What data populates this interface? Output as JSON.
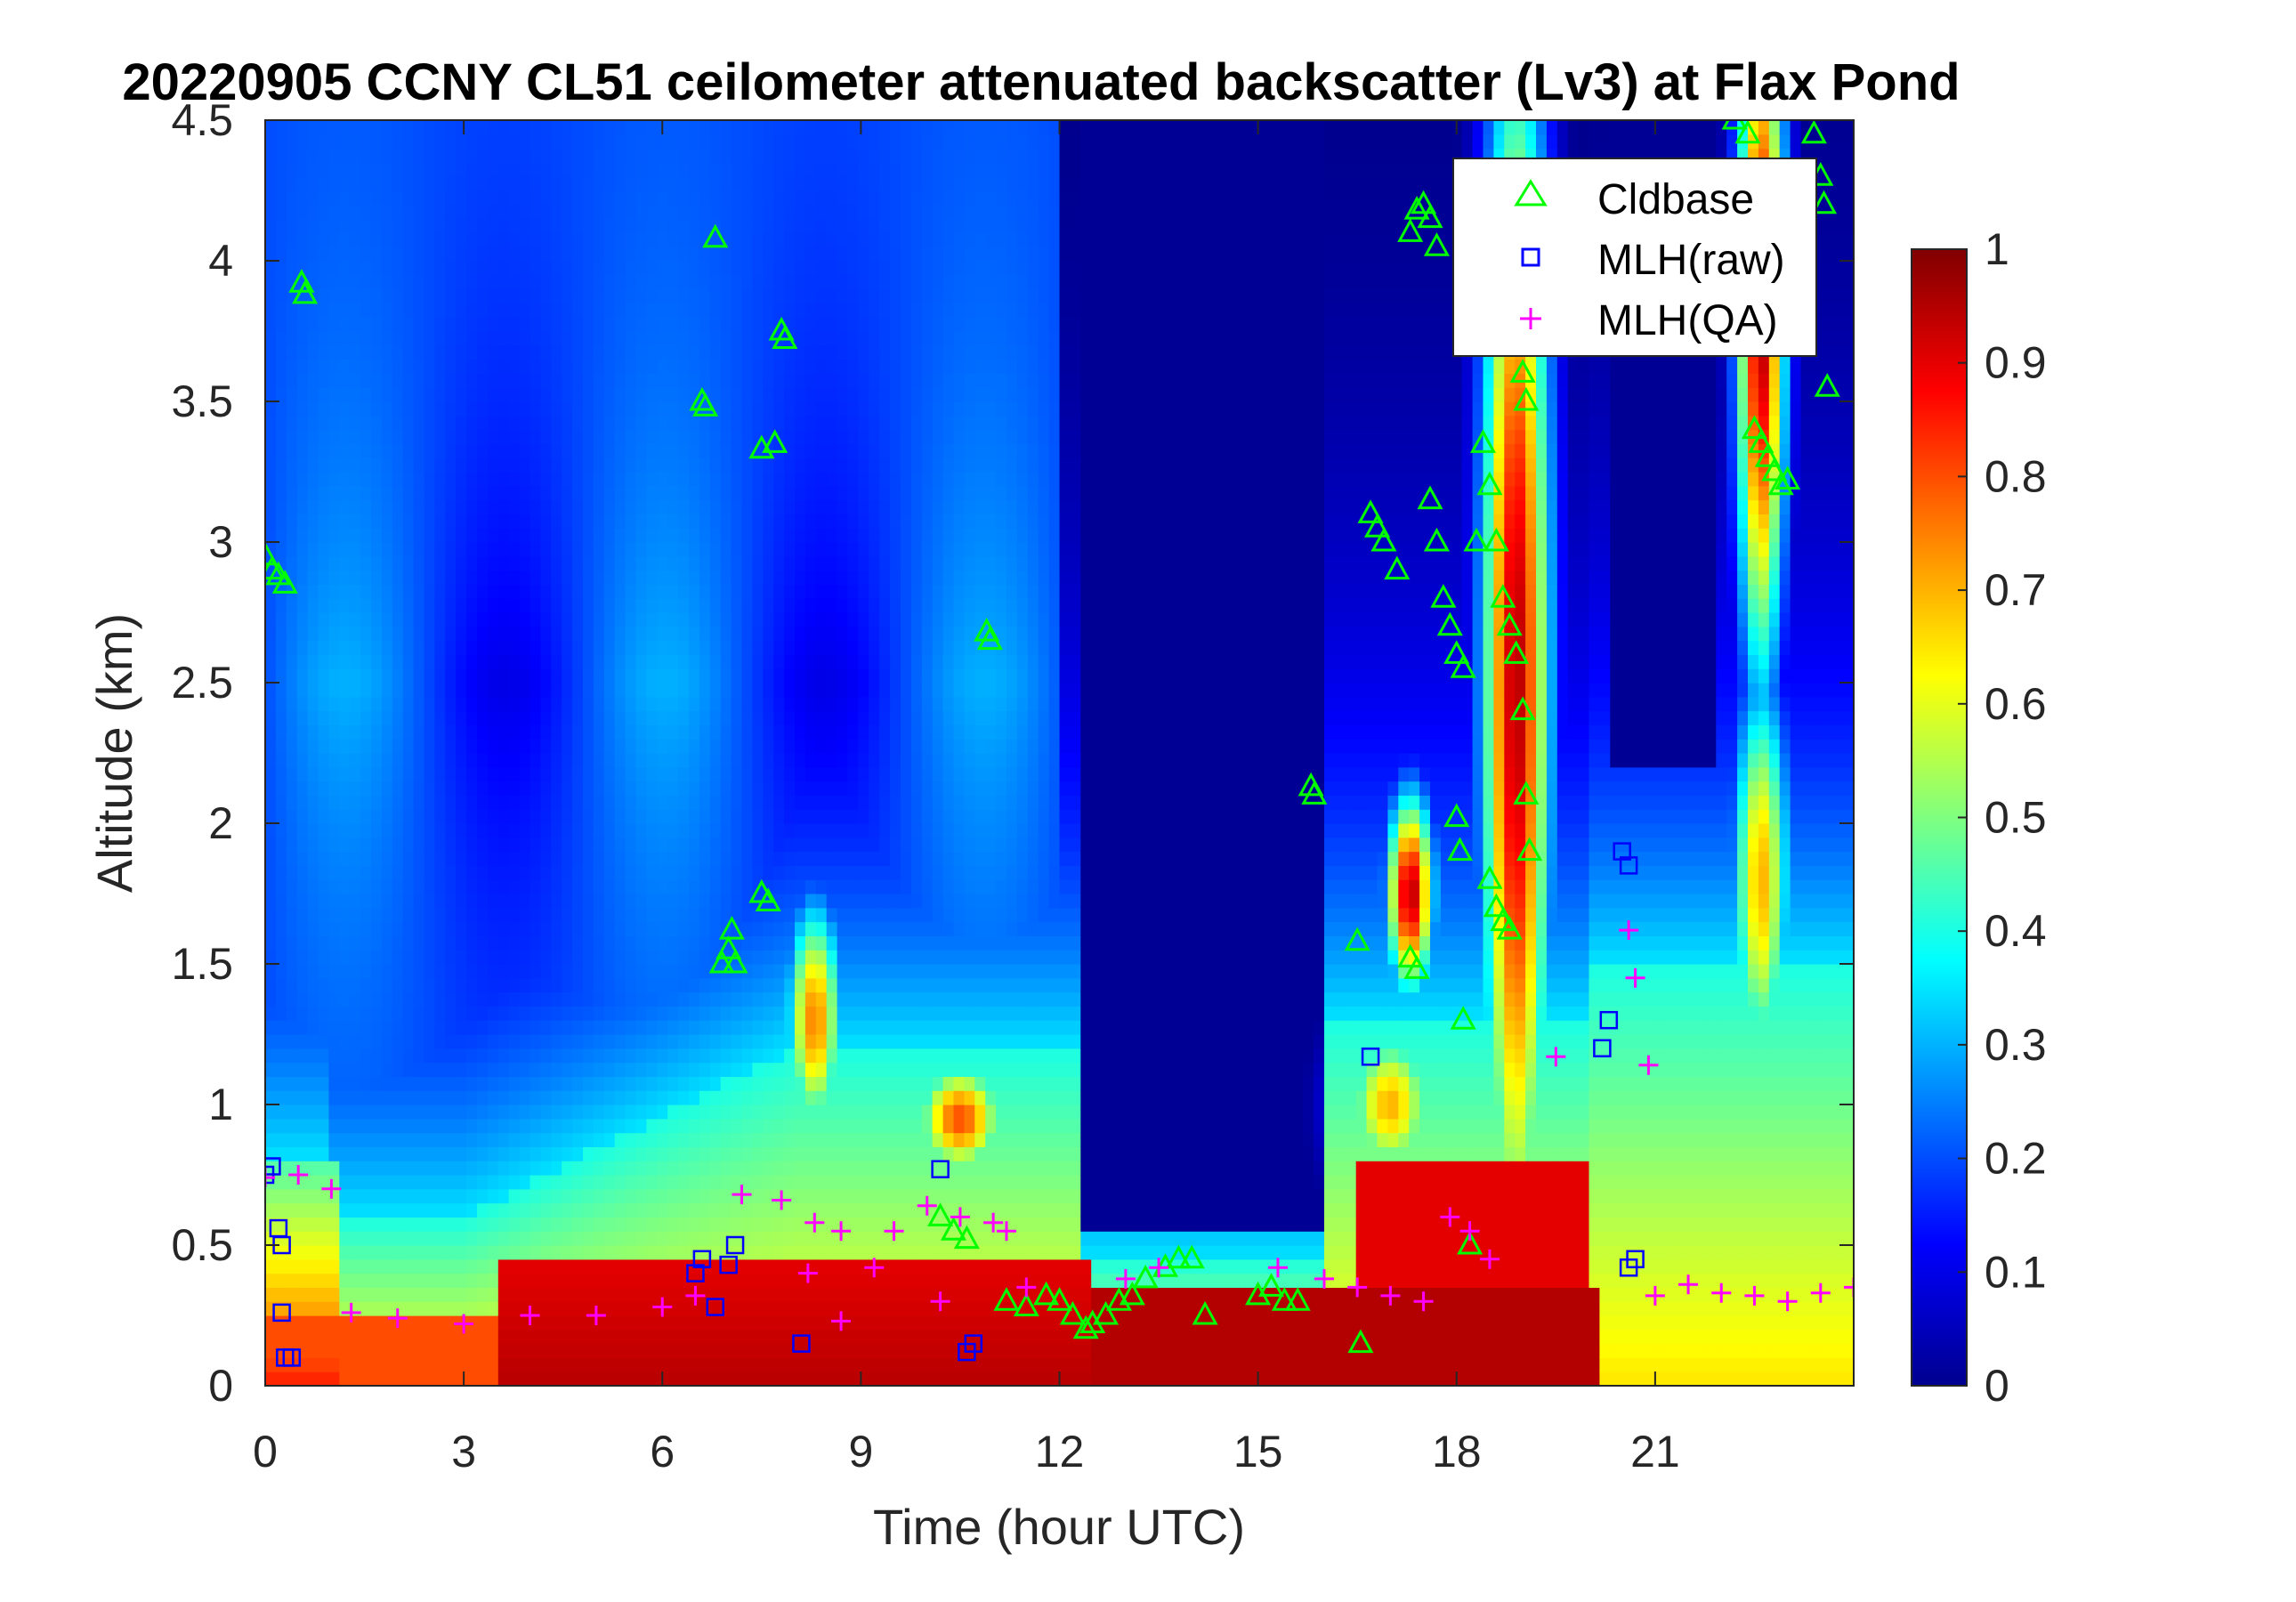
{
  "chart_data": {
    "type": "heatmap",
    "title": "20220905 CCNY CL51 ceilometer attenuated backscatter (Lv3) at Flax Pond",
    "xlabel": "Time (hour UTC)",
    "ylabel": "Altitude (km)",
    "xlim": [
      0,
      24
    ],
    "ylim": [
      0,
      4.5
    ],
    "xticks": [
      0,
      3,
      6,
      9,
      12,
      15,
      18,
      21
    ],
    "xtick_labels": [
      "0",
      "3",
      "6",
      "9",
      "12",
      "15",
      "18",
      "21"
    ],
    "yticks": [
      0,
      0.5,
      1,
      1.5,
      2,
      2.5,
      3,
      3.5,
      4,
      4.5
    ],
    "ytick_labels": [
      "0",
      "0.5",
      "1",
      "1.5",
      "2",
      "2.5",
      "3",
      "3.5",
      "4",
      "4.5"
    ],
    "colorbar": {
      "colormap": "jet",
      "clim": [
        0,
        1
      ],
      "ticks": [
        0,
        0.1,
        0.2,
        0.3,
        0.4,
        0.5,
        0.6,
        0.7,
        0.8,
        0.9,
        1
      ],
      "tick_labels": [
        "0",
        "0.1",
        "0.2",
        "0.3",
        "0.4",
        "0.5",
        "0.6",
        "0.7",
        "0.8",
        "0.9",
        "1"
      ]
    },
    "legend": {
      "position": "top-right",
      "entries": [
        {
          "label": "Cldbase",
          "marker": "triangle",
          "color": "#00ff00"
        },
        {
          "label": "MLH(raw)",
          "marker": "square",
          "color": "#0000ff"
        },
        {
          "label": "MLH(QA)",
          "marker": "plus",
          "color": "#ff00ff"
        }
      ]
    },
    "series": [
      {
        "name": "Cldbase",
        "marker": "triangle",
        "color": "#00ff00",
        "points": [
          [
            0.0,
            2.95
          ],
          [
            0.1,
            2.9
          ],
          [
            0.2,
            2.88
          ],
          [
            0.3,
            2.85
          ],
          [
            0.55,
            3.92
          ],
          [
            0.6,
            3.88
          ],
          [
            6.6,
            3.5
          ],
          [
            6.65,
            3.48
          ],
          [
            6.8,
            4.08
          ],
          [
            7.5,
            3.33
          ],
          [
            7.7,
            3.35
          ],
          [
            7.8,
            3.75
          ],
          [
            7.85,
            3.72
          ],
          [
            10.9,
            2.68
          ],
          [
            10.95,
            2.65
          ],
          [
            6.9,
            1.5
          ],
          [
            7.0,
            1.55
          ],
          [
            7.05,
            1.62
          ],
          [
            7.1,
            1.5
          ],
          [
            7.5,
            1.75
          ],
          [
            7.6,
            1.72
          ],
          [
            10.2,
            0.6
          ],
          [
            10.4,
            0.55
          ],
          [
            10.6,
            0.52
          ],
          [
            11.2,
            0.3
          ],
          [
            11.5,
            0.28
          ],
          [
            11.8,
            0.32
          ],
          [
            12.0,
            0.3
          ],
          [
            12.2,
            0.25
          ],
          [
            12.4,
            0.2
          ],
          [
            12.5,
            0.22
          ],
          [
            12.7,
            0.25
          ],
          [
            12.9,
            0.3
          ],
          [
            13.1,
            0.32
          ],
          [
            13.3,
            0.38
          ],
          [
            13.6,
            0.42
          ],
          [
            13.8,
            0.45
          ],
          [
            14.0,
            0.45
          ],
          [
            14.2,
            0.25
          ],
          [
            15.0,
            0.32
          ],
          [
            15.2,
            0.35
          ],
          [
            15.4,
            0.3
          ],
          [
            15.6,
            0.3
          ],
          [
            15.8,
            2.13
          ],
          [
            15.85,
            2.1
          ],
          [
            16.5,
            1.58
          ],
          [
            16.55,
            0.15
          ],
          [
            16.7,
            3.1
          ],
          [
            16.8,
            3.05
          ],
          [
            16.9,
            3.0
          ],
          [
            17.1,
            2.9
          ],
          [
            17.3,
            1.52
          ],
          [
            17.4,
            1.48
          ],
          [
            17.6,
            3.15
          ],
          [
            17.7,
            3.0
          ],
          [
            17.8,
            2.8
          ],
          [
            17.9,
            2.7
          ],
          [
            18.0,
            2.6
          ],
          [
            18.1,
            2.55
          ],
          [
            18.0,
            2.02
          ],
          [
            18.05,
            1.9
          ],
          [
            18.1,
            1.3
          ],
          [
            18.2,
            0.5
          ],
          [
            18.3,
            3.0
          ],
          [
            18.4,
            3.35
          ],
          [
            18.5,
            3.2
          ],
          [
            18.6,
            3.0
          ],
          [
            18.7,
            2.8
          ],
          [
            18.8,
            2.7
          ],
          [
            18.9,
            2.6
          ],
          [
            18.5,
            1.8
          ],
          [
            18.6,
            1.7
          ],
          [
            18.7,
            1.65
          ],
          [
            18.8,
            1.62
          ],
          [
            19.0,
            3.6
          ],
          [
            19.05,
            3.5
          ],
          [
            19.0,
            2.4
          ],
          [
            19.05,
            2.1
          ],
          [
            19.1,
            1.9
          ],
          [
            17.5,
            4.2
          ],
          [
            17.6,
            4.15
          ],
          [
            17.7,
            4.05
          ],
          [
            17.3,
            4.1
          ],
          [
            17.4,
            4.18
          ],
          [
            22.2,
            4.5
          ],
          [
            22.4,
            4.45
          ],
          [
            23.4,
            4.45
          ],
          [
            23.5,
            4.3
          ],
          [
            23.55,
            4.2
          ],
          [
            23.6,
            3.55
          ],
          [
            22.5,
            3.4
          ],
          [
            22.6,
            3.35
          ],
          [
            22.7,
            3.3
          ],
          [
            22.8,
            3.25
          ],
          [
            22.9,
            3.2
          ],
          [
            23.0,
            3.22
          ]
        ]
      },
      {
        "name": "MLH(raw)",
        "marker": "square",
        "color": "#0000ff",
        "points": [
          [
            0.0,
            0.75
          ],
          [
            0.1,
            0.78
          ],
          [
            0.2,
            0.56
          ],
          [
            0.25,
            0.5
          ],
          [
            0.3,
            0.1
          ],
          [
            0.4,
            0.1
          ],
          [
            0.25,
            0.26
          ],
          [
            6.5,
            0.4
          ],
          [
            6.6,
            0.45
          ],
          [
            6.8,
            0.28
          ],
          [
            7.0,
            0.43
          ],
          [
            7.1,
            0.5
          ],
          [
            8.1,
            0.15
          ],
          [
            10.2,
            0.77
          ],
          [
            10.6,
            0.12
          ],
          [
            10.7,
            0.15
          ],
          [
            16.7,
            1.17
          ],
          [
            20.2,
            1.2
          ],
          [
            20.3,
            1.3
          ],
          [
            20.5,
            1.9
          ],
          [
            20.6,
            1.85
          ],
          [
            20.6,
            0.42
          ],
          [
            20.7,
            0.45
          ]
        ]
      },
      {
        "name": "MLH(QA)",
        "marker": "plus",
        "color": "#ff00ff",
        "points": [
          [
            0.0,
            0.74
          ],
          [
            0.5,
            0.75
          ],
          [
            1.0,
            0.7
          ],
          [
            1.3,
            0.26
          ],
          [
            2.0,
            0.24
          ],
          [
            3.0,
            0.22
          ],
          [
            4.0,
            0.25
          ],
          [
            5.0,
            0.25
          ],
          [
            6.0,
            0.28
          ],
          [
            6.5,
            0.32
          ],
          [
            7.2,
            0.68
          ],
          [
            7.8,
            0.66
          ],
          [
            8.3,
            0.58
          ],
          [
            8.7,
            0.55
          ],
          [
            8.2,
            0.4
          ],
          [
            8.7,
            0.23
          ],
          [
            9.2,
            0.42
          ],
          [
            9.5,
            0.55
          ],
          [
            10.0,
            0.64
          ],
          [
            10.2,
            0.3
          ],
          [
            10.5,
            0.6
          ],
          [
            11.0,
            0.58
          ],
          [
            11.2,
            0.55
          ],
          [
            11.5,
            0.35
          ],
          [
            13.0,
            0.38
          ],
          [
            13.5,
            0.42
          ],
          [
            15.3,
            0.42
          ],
          [
            16.0,
            0.38
          ],
          [
            16.5,
            0.35
          ],
          [
            17.0,
            0.32
          ],
          [
            17.5,
            0.3
          ],
          [
            17.9,
            0.6
          ],
          [
            18.2,
            0.55
          ],
          [
            18.5,
            0.45
          ],
          [
            19.5,
            1.17
          ],
          [
            20.6,
            1.62
          ],
          [
            20.7,
            1.45
          ],
          [
            20.9,
            1.14
          ],
          [
            21.0,
            0.32
          ],
          [
            21.5,
            0.36
          ],
          [
            22.0,
            0.33
          ],
          [
            22.5,
            0.32
          ],
          [
            23.0,
            0.3
          ],
          [
            23.5,
            0.33
          ],
          [
            24.0,
            0.35
          ]
        ]
      }
    ]
  }
}
